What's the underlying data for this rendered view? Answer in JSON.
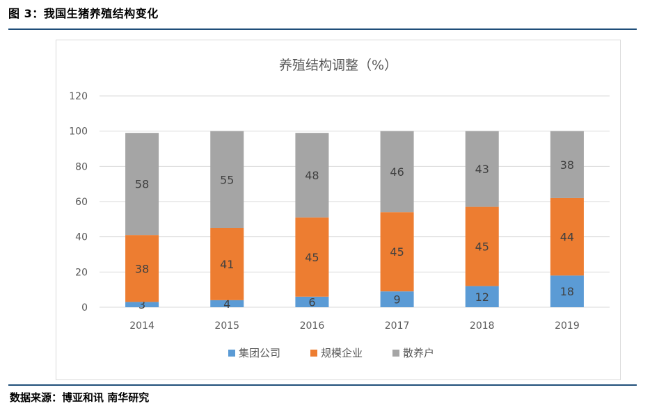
{
  "caption": "图 3：我国生猪养殖结构变化",
  "source": "数据来源：博亚和讯 南华研究",
  "chart_data": {
    "type": "bar",
    "stacked": true,
    "title": "养殖结构调整（%）",
    "categories": [
      "2014",
      "2015",
      "2016",
      "2017",
      "2018",
      "2019"
    ],
    "series": [
      {
        "name": "集团公司",
        "values": [
          3,
          4,
          6,
          9,
          12,
          18
        ],
        "color": "#5b9bd5"
      },
      {
        "name": "规模企业",
        "values": [
          38,
          41,
          45,
          45,
          45,
          44
        ],
        "color": "#ed7d31"
      },
      {
        "name": "散养户",
        "values": [
          58,
          55,
          48,
          46,
          43,
          38
        ],
        "color": "#a5a5a5"
      }
    ],
    "ylim": [
      0,
      120
    ],
    "yticks": [
      0,
      20,
      40,
      60,
      80,
      100,
      120
    ],
    "grid": true,
    "legend_position": "bottom",
    "xlabel": "",
    "ylabel": ""
  }
}
